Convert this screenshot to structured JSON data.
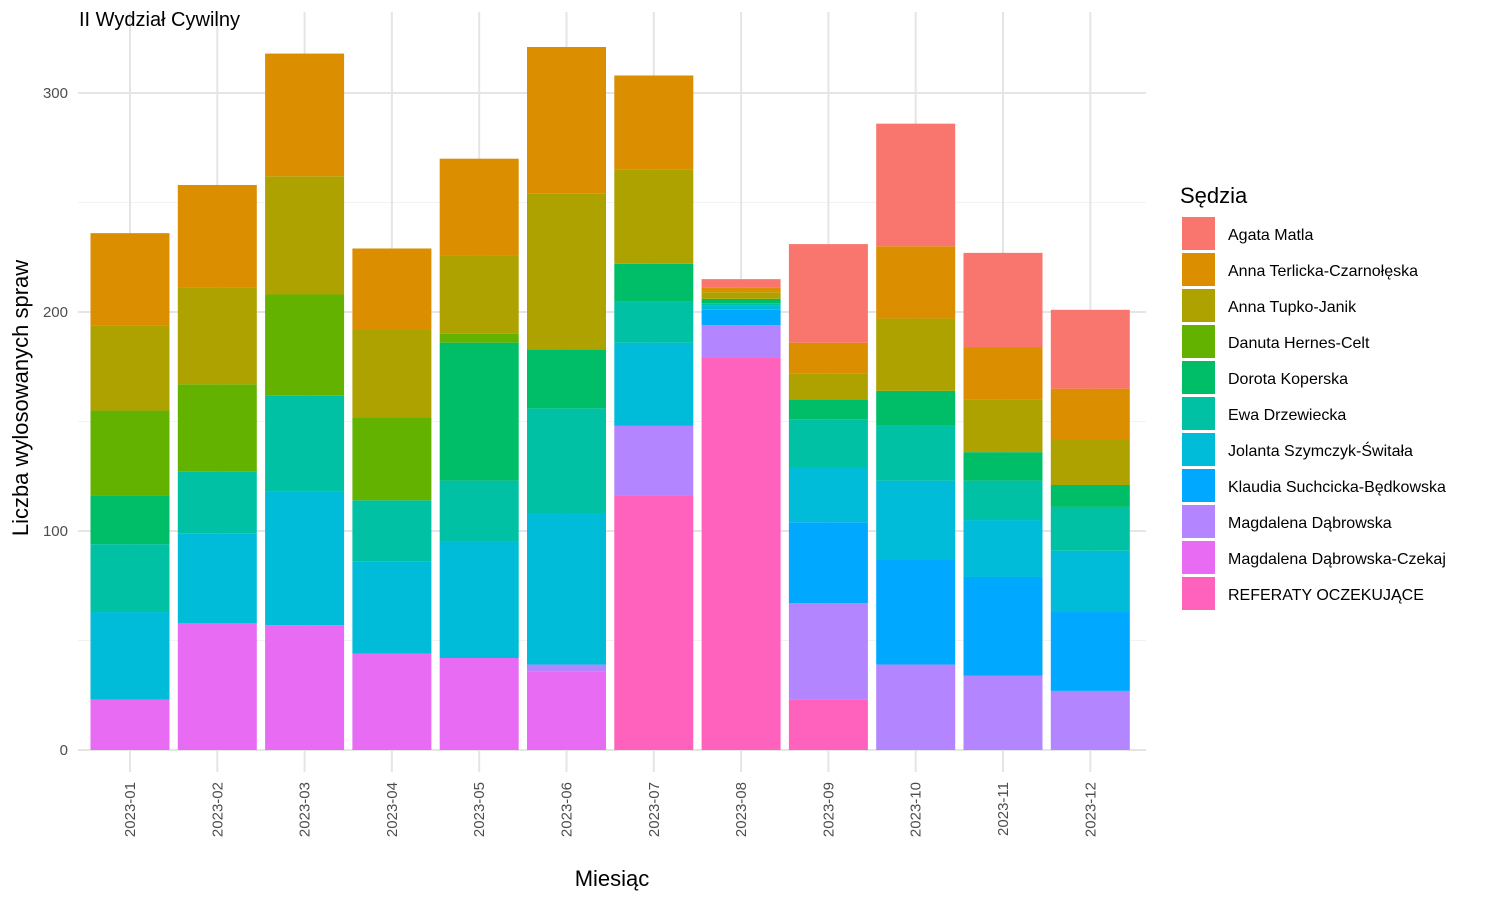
{
  "chart_data": {
    "type": "bar",
    "stacked": true,
    "title": "II Wydział Cywilny",
    "xlabel": "Miesiąc",
    "ylabel": "Liczba wylosowanych spraw",
    "ylim": [
      0,
      330
    ],
    "yticks": [
      0,
      100,
      200,
      300
    ],
    "grid": true,
    "legend_title": "Sędzia",
    "legend_position": "right",
    "categories": [
      "2023-01",
      "2023-02",
      "2023-03",
      "2023-04",
      "2023-05",
      "2023-06",
      "2023-07",
      "2023-08",
      "2023-09",
      "2023-10",
      "2023-11",
      "2023-12"
    ],
    "series": [
      {
        "name": "REFERATY OCZEKUJĄCE",
        "color": "#FF62BC",
        "values": [
          0,
          0,
          0,
          0,
          0,
          0,
          116,
          179,
          23,
          0,
          0,
          0
        ]
      },
      {
        "name": "Magdalena Dąbrowska-Czekaj",
        "color": "#E76BF3",
        "values": [
          23,
          58,
          57,
          44,
          42,
          36,
          0,
          0,
          0,
          0,
          0,
          0
        ]
      },
      {
        "name": "Magdalena Dąbrowska",
        "color": "#B385FF",
        "values": [
          0,
          0,
          0,
          0,
          0,
          3,
          32,
          15,
          44,
          39,
          34,
          27
        ]
      },
      {
        "name": "Klaudia Suchcicka-Będkowska",
        "color": "#00A9FF",
        "values": [
          0,
          0,
          0,
          0,
          0,
          0,
          0,
          7,
          37,
          48,
          45,
          36
        ]
      },
      {
        "name": "Jolanta Szymczyk-Świtała",
        "color": "#00BCD8",
        "values": [
          40,
          41,
          61,
          42,
          53,
          69,
          38,
          2,
          25,
          36,
          26,
          28
        ]
      },
      {
        "name": "Ewa Drzewiecka",
        "color": "#00C1A3",
        "values": [
          31,
          28,
          44,
          28,
          28,
          48,
          19,
          1,
          22,
          25,
          18,
          20
        ]
      },
      {
        "name": "Dorota Koperska",
        "color": "#00BE67",
        "values": [
          22,
          0,
          0,
          0,
          63,
          27,
          17,
          2,
          9,
          16,
          13,
          10
        ]
      },
      {
        "name": "Danuta Hernes-Celt",
        "color": "#64B200",
        "values": [
          39,
          40,
          46,
          38,
          4,
          0,
          0,
          0,
          0,
          0,
          0,
          0
        ]
      },
      {
        "name": "Anna Tupko-Janik",
        "color": "#AEA200",
        "values": [
          39,
          44,
          54,
          40,
          36,
          71,
          43,
          3,
          12,
          33,
          24,
          21
        ]
      },
      {
        "name": "Anna Terlicka-Czarnołęska",
        "color": "#DB8E00",
        "values": [
          42,
          47,
          56,
          37,
          44,
          67,
          43,
          2,
          14,
          33,
          24,
          23
        ]
      },
      {
        "name": "Agata Matla",
        "color": "#F8766D",
        "values": [
          0,
          0,
          0,
          0,
          0,
          0,
          0,
          4,
          45,
          56,
          43,
          36
        ]
      }
    ],
    "legend_order": [
      "Agata Matla",
      "Anna Terlicka-Czarnołęska",
      "Anna Tupko-Janik",
      "Danuta Hernes-Celt",
      "Dorota Koperska",
      "Ewa Drzewiecka",
      "Jolanta Szymczyk-Świtała",
      "Klaudia Suchcicka-Będkowska",
      "Magdalena Dąbrowska",
      "Magdalena Dąbrowska-Czekaj",
      "REFERATY OCZEKUJĄCE"
    ]
  }
}
